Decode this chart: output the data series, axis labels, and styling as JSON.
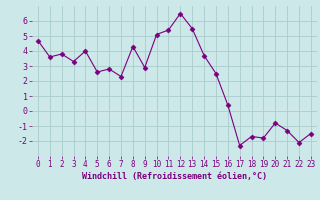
{
  "x": [
    0,
    1,
    2,
    3,
    4,
    5,
    6,
    7,
    8,
    9,
    10,
    11,
    12,
    13,
    14,
    15,
    16,
    17,
    18,
    19,
    20,
    21,
    22,
    23
  ],
  "y": [
    4.7,
    3.6,
    3.8,
    3.3,
    4.0,
    2.6,
    2.8,
    2.3,
    4.3,
    2.9,
    5.1,
    5.4,
    6.5,
    5.5,
    3.7,
    2.5,
    0.4,
    -2.3,
    -1.7,
    -1.8,
    -0.8,
    -1.3,
    -2.1,
    -1.5
  ],
  "line_color": "#7b0080",
  "marker": "D",
  "marker_size": 2.5,
  "bg_color": "#cce8e8",
  "grid_color": "#aacccc",
  "xlabel": "Windchill (Refroidissement éolien,°C)",
  "xlabel_color": "#7b0080",
  "tick_color": "#7b0080",
  "ylim": [
    -3,
    7
  ],
  "xlim": [
    -0.5,
    23.5
  ],
  "yticks": [
    -2,
    -1,
    0,
    1,
    2,
    3,
    4,
    5,
    6
  ],
  "xticks": [
    0,
    1,
    2,
    3,
    4,
    5,
    6,
    7,
    8,
    9,
    10,
    11,
    12,
    13,
    14,
    15,
    16,
    17,
    18,
    19,
    20,
    21,
    22,
    23
  ],
  "tick_fontsize": 5.5,
  "xlabel_fontsize": 6.0
}
